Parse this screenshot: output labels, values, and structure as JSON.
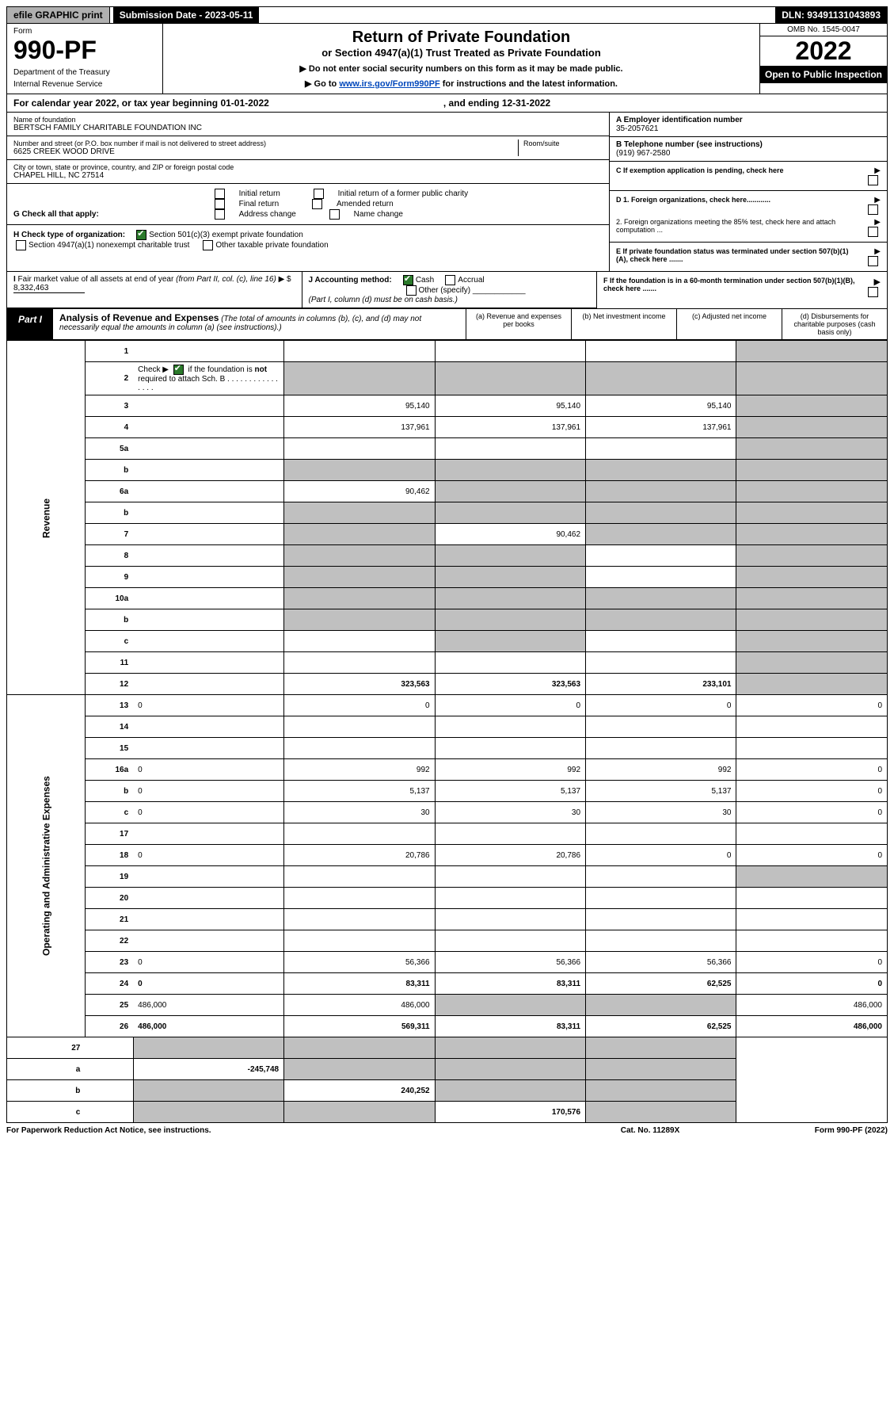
{
  "top": {
    "efile": "efile GRAPHIC print",
    "submission_label": "Submission Date - 2023-05-11",
    "dln": "DLN: 93491131043893"
  },
  "header": {
    "form_word": "Form",
    "form_no": "990-PF",
    "dept": "Department of the Treasury",
    "irs": "Internal Revenue Service",
    "title": "Return of Private Foundation",
    "subtitle": "or Section 4947(a)(1) Trust Treated as Private Foundation",
    "note1": "▶ Do not enter social security numbers on this form as it may be made public.",
    "note2_pre": "▶ Go to ",
    "note2_link": "www.irs.gov/Form990PF",
    "note2_post": " for instructions and the latest information.",
    "omb": "OMB No. 1545-0047",
    "year": "2022",
    "open": "Open to Public Inspection"
  },
  "calyear": {
    "text": "For calendar year 2022, or tax year beginning 01-01-2022",
    "ending": ", and ending 12-31-2022"
  },
  "entity": {
    "name_label": "Name of foundation",
    "name": "BERTSCH FAMILY CHARITABLE FOUNDATION INC",
    "addr_label": "Number and street (or P.O. box number if mail is not delivered to street address)",
    "addr": "6625 CREEK WOOD DRIVE",
    "room_label": "Room/suite",
    "city_label": "City or town, state or province, country, and ZIP or foreign postal code",
    "city": "CHAPEL HILL, NC  27514",
    "ein_label": "A Employer identification number",
    "ein": "35-2057621",
    "phone_label": "B Telephone number (see instructions)",
    "phone": "(919) 967-2580",
    "c_label": "C If exemption application is pending, check here"
  },
  "checks": {
    "g_label": "G Check all that apply:",
    "g1": "Initial return",
    "g2": "Initial return of a former public charity",
    "g3": "Final return",
    "g4": "Amended return",
    "g5": "Address change",
    "g6": "Name change",
    "h_label": "H Check type of organization:",
    "h1": "Section 501(c)(3) exempt private foundation",
    "h2": "Section 4947(a)(1) nonexempt charitable trust",
    "h3": "Other taxable private foundation",
    "i_label": "I Fair market value of all assets at end of year (from Part II, col. (c), line 16) ▶ $",
    "i_val": "8,332,463",
    "j_label": "J Accounting method:",
    "j1": "Cash",
    "j2": "Accrual",
    "j3": "Other (specify)",
    "j_note": "(Part I, column (d) must be on cash basis.)",
    "d1": "D 1. Foreign organizations, check here............",
    "d2": "2. Foreign organizations meeting the 85% test, check here and attach computation ...",
    "e": "E  If private foundation status was terminated under section 507(b)(1)(A), check here .......",
    "f": "F  If the foundation is in a 60-month termination under section 507(b)(1)(B), check here .......",
    "arrow": "▶"
  },
  "part1": {
    "tab": "Part I",
    "title": "Analysis of Revenue and Expenses",
    "note": "(The total of amounts in columns (b), (c), and (d) may not necessarily equal the amounts in column (a) (see instructions).)",
    "col_a": "(a)  Revenue and expenses per books",
    "col_b": "(b)  Net investment income",
    "col_c": "(c)  Adjusted net income",
    "col_d": "(d)  Disbursements for charitable purposes (cash basis only)"
  },
  "side_labels": {
    "rev": "Revenue",
    "opex": "Operating and Administrative Expenses"
  },
  "rows": [
    {
      "n": "1",
      "d": "",
      "a": "",
      "b": "",
      "c": "",
      "shade": [
        "d"
      ]
    },
    {
      "n": "2",
      "d": "",
      "a": "",
      "b": "",
      "c": "",
      "shade": [
        "a",
        "b",
        "c",
        "d"
      ],
      "chk": true
    },
    {
      "n": "3",
      "d": "",
      "a": "95,140",
      "b": "95,140",
      "c": "95,140",
      "shade": [
        "d"
      ]
    },
    {
      "n": "4",
      "d": "",
      "a": "137,961",
      "b": "137,961",
      "c": "137,961",
      "shade": [
        "d"
      ]
    },
    {
      "n": "5a",
      "d": "",
      "a": "",
      "b": "",
      "c": "",
      "shade": [
        "d"
      ]
    },
    {
      "n": "b",
      "d": "",
      "a": "",
      "b": "",
      "c": "",
      "shade": [
        "a",
        "b",
        "c",
        "d"
      ]
    },
    {
      "n": "6a",
      "d": "",
      "a": "90,462",
      "b": "",
      "c": "",
      "shade": [
        "b",
        "c",
        "d"
      ]
    },
    {
      "n": "b",
      "d": "",
      "a": "",
      "b": "",
      "c": "",
      "shade": [
        "a",
        "b",
        "c",
        "d"
      ]
    },
    {
      "n": "7",
      "d": "",
      "a": "",
      "b": "90,462",
      "c": "",
      "shade": [
        "a",
        "c",
        "d"
      ]
    },
    {
      "n": "8",
      "d": "",
      "a": "",
      "b": "",
      "c": "",
      "shade": [
        "a",
        "b",
        "d"
      ]
    },
    {
      "n": "9",
      "d": "",
      "a": "",
      "b": "",
      "c": "",
      "shade": [
        "a",
        "b",
        "d"
      ]
    },
    {
      "n": "10a",
      "d": "",
      "a": "",
      "b": "",
      "c": "",
      "shade": [
        "a",
        "b",
        "c",
        "d"
      ]
    },
    {
      "n": "b",
      "d": "",
      "a": "",
      "b": "",
      "c": "",
      "shade": [
        "a",
        "b",
        "c",
        "d"
      ]
    },
    {
      "n": "c",
      "d": "",
      "a": "",
      "b": "",
      "c": "",
      "shade": [
        "b",
        "d"
      ]
    },
    {
      "n": "11",
      "d": "",
      "a": "",
      "b": "",
      "c": "",
      "shade": [
        "d"
      ]
    },
    {
      "n": "12",
      "d": "",
      "a": "323,563",
      "b": "323,563",
      "c": "233,101",
      "shade": [
        "d"
      ],
      "bold": true
    }
  ],
  "oprows": [
    {
      "n": "13",
      "d": "0",
      "a": "0",
      "b": "0",
      "c": "0"
    },
    {
      "n": "14",
      "d": "",
      "a": "",
      "b": "",
      "c": ""
    },
    {
      "n": "15",
      "d": "",
      "a": "",
      "b": "",
      "c": ""
    },
    {
      "n": "16a",
      "d": "0",
      "a": "992",
      "b": "992",
      "c": "992"
    },
    {
      "n": "b",
      "d": "0",
      "a": "5,137",
      "b": "5,137",
      "c": "5,137"
    },
    {
      "n": "c",
      "d": "0",
      "a": "30",
      "b": "30",
      "c": "30"
    },
    {
      "n": "17",
      "d": "",
      "a": "",
      "b": "",
      "c": ""
    },
    {
      "n": "18",
      "d": "0",
      "a": "20,786",
      "b": "20,786",
      "c": "0"
    },
    {
      "n": "19",
      "d": "",
      "a": "",
      "b": "",
      "c": "",
      "shade": [
        "d"
      ]
    },
    {
      "n": "20",
      "d": "",
      "a": "",
      "b": "",
      "c": ""
    },
    {
      "n": "21",
      "d": "",
      "a": "",
      "b": "",
      "c": ""
    },
    {
      "n": "22",
      "d": "",
      "a": "",
      "b": "",
      "c": ""
    },
    {
      "n": "23",
      "d": "0",
      "a": "56,366",
      "b": "56,366",
      "c": "56,366"
    },
    {
      "n": "24",
      "d": "0",
      "a": "83,311",
      "b": "83,311",
      "c": "62,525",
      "bold": true
    },
    {
      "n": "25",
      "d": "486,000",
      "a": "486,000",
      "b": "",
      "c": "",
      "shade": [
        "b",
        "c"
      ]
    },
    {
      "n": "26",
      "d": "486,000",
      "a": "569,311",
      "b": "83,311",
      "c": "62,525",
      "bold": true
    }
  ],
  "bottomrows": [
    {
      "n": "27",
      "d": "",
      "a": "",
      "b": "",
      "c": "",
      "shade": [
        "a",
        "b",
        "c",
        "d"
      ]
    },
    {
      "n": "a",
      "d": "",
      "a": "-245,748",
      "b": "",
      "c": "",
      "shade": [
        "b",
        "c",
        "d"
      ],
      "bold": true
    },
    {
      "n": "b",
      "d": "",
      "a": "",
      "b": "240,252",
      "c": "",
      "shade": [
        "a",
        "c",
        "d"
      ],
      "bold": true
    },
    {
      "n": "c",
      "d": "",
      "a": "",
      "b": "",
      "c": "170,576",
      "shade": [
        "a",
        "b",
        "d"
      ],
      "bold": true
    }
  ],
  "footer": {
    "left": "For Paperwork Reduction Act Notice, see instructions.",
    "mid": "Cat. No. 11289X",
    "right": "Form 990-PF (2022)"
  }
}
